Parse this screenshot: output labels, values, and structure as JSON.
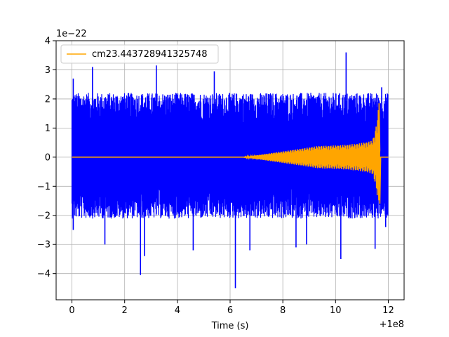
{
  "chart_data": {
    "type": "line",
    "title": "",
    "xlabel": "Time (s)",
    "ylabel": "",
    "x_offset_label": "+1e8",
    "y_scale_label": "1e−22",
    "xlim": [
      -0.6,
      12.6
    ],
    "ylim": [
      -4.9,
      4.0
    ],
    "x_ticks": [
      0,
      2,
      4,
      6,
      8,
      10,
      12
    ],
    "x_tick_labels": [
      "0",
      "2",
      "4",
      "6",
      "8",
      "10",
      "12"
    ],
    "y_ticks": [
      -4,
      -3,
      -2,
      -1,
      0,
      1,
      2,
      3,
      4
    ],
    "y_tick_labels": [
      "−4",
      "−3",
      "−2",
      "−1",
      "0",
      "1",
      "2",
      "3",
      "4"
    ],
    "grid": true,
    "legend": {
      "placement": "top-left",
      "entries": [
        "cm23.443728941325748"
      ]
    },
    "series": [
      {
        "style": "noise",
        "color": "#0000ff",
        "x_range": [
          0.0,
          12.0
        ],
        "band": [
          -2.1,
          2.2
        ],
        "spikes": [
          {
            "x": 0.05,
            "y": 2.7
          },
          {
            "x": 0.05,
            "y": -2.5
          },
          {
            "x": 0.78,
            "y": 3.1
          },
          {
            "x": 1.25,
            "y": -3.0
          },
          {
            "x": 2.6,
            "y": -4.05
          },
          {
            "x": 2.75,
            "y": -3.4
          },
          {
            "x": 3.2,
            "y": 3.15
          },
          {
            "x": 4.6,
            "y": -3.2
          },
          {
            "x": 5.4,
            "y": 2.95
          },
          {
            "x": 6.2,
            "y": -4.5
          },
          {
            "x": 6.75,
            "y": -3.2
          },
          {
            "x": 8.5,
            "y": -3.1
          },
          {
            "x": 8.9,
            "y": -3.0
          },
          {
            "x": 10.2,
            "y": -3.5
          },
          {
            "x": 10.4,
            "y": 3.6
          },
          {
            "x": 11.5,
            "y": -3.15
          },
          {
            "x": 11.75,
            "y": 2.4
          },
          {
            "x": 11.9,
            "y": -2.4
          }
        ]
      },
      {
        "name": "cm23.443728941325748",
        "style": "chirp",
        "color": "#ffa500",
        "x_range": [
          0.0,
          11.68
        ],
        "amplitude_start": 0.0,
        "amplitude_end": 1.85,
        "onset_x": 6.5,
        "merger_x": 11.65,
        "merger_peak": 1.85,
        "merger_trough": -1.6
      }
    ]
  }
}
